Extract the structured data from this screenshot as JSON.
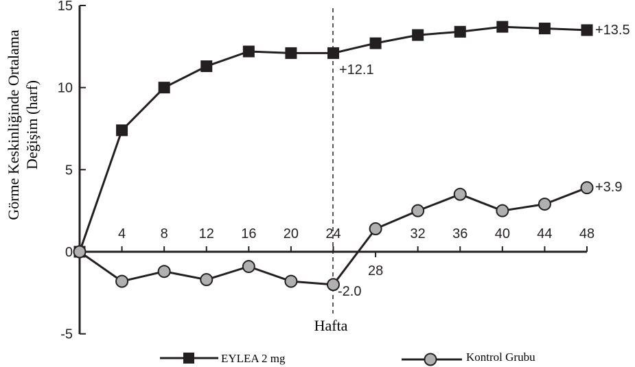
{
  "chart_data": {
    "type": "line",
    "xlabel": "Hafta",
    "ylabel_lines": [
      "Görme Keskinliğinde Ortalama",
      "Değişim (harf)"
    ],
    "x": [
      0,
      4,
      8,
      12,
      16,
      20,
      24,
      28,
      32,
      36,
      40,
      44,
      48
    ],
    "xlim": [
      0,
      48
    ],
    "ylim": [
      -5,
      15
    ],
    "yticks": [
      "15",
      "10",
      "5",
      "0",
      "-5"
    ],
    "xticks": [
      "4",
      "8",
      "12",
      "16",
      "20",
      "24",
      "28",
      "32",
      "36",
      "40",
      "44",
      "48"
    ],
    "grid": false,
    "legend_position": "bottom",
    "reference_line": {
      "x": 24,
      "style": "dashed"
    },
    "series": [
      {
        "name": "EYLEA 2 mg",
        "marker": "square",
        "color": "#231f20",
        "values": [
          0,
          7.4,
          10.0,
          11.3,
          12.2,
          12.1,
          12.1,
          12.7,
          13.2,
          13.4,
          13.7,
          13.6,
          13.5
        ]
      },
      {
        "name": "Kontrol Grubu",
        "marker": "circle",
        "color": "#231f20",
        "marker_fill": "#b0b0b0",
        "values": [
          0,
          -1.8,
          -1.2,
          -1.7,
          -0.9,
          -1.8,
          -2.0,
          1.4,
          2.5,
          3.5,
          2.5,
          2.9,
          3.9
        ]
      }
    ],
    "annotations": [
      "+13.5",
      "+12.1",
      "+3.9",
      "-2.0"
    ]
  }
}
